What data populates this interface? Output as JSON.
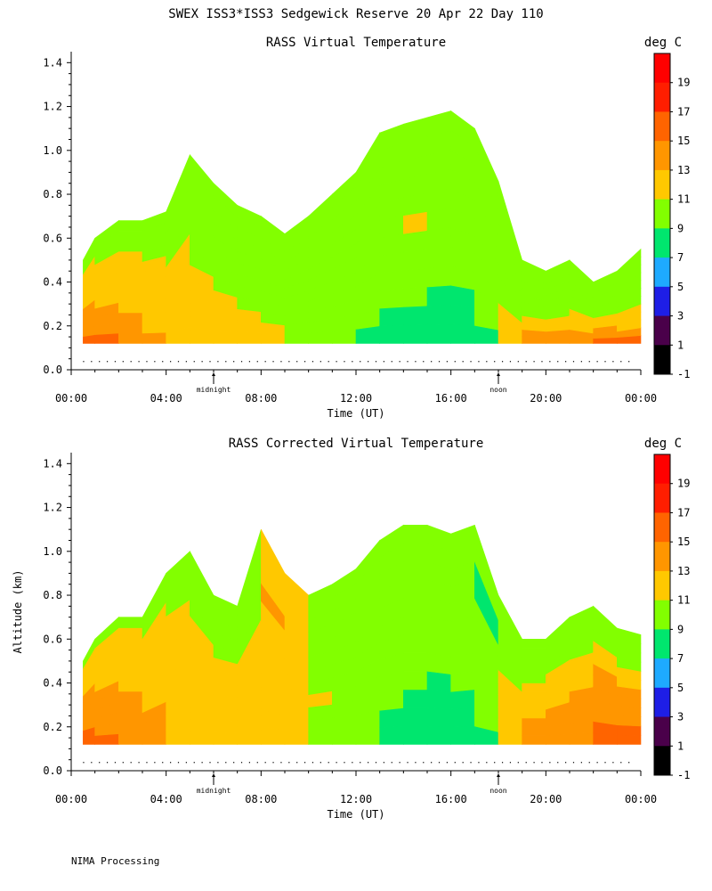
{
  "chart_data": {
    "type": "heatmap",
    "title": "SWEX ISS3*ISS3 Sedgewick Reserve  20 Apr 22 Day 110",
    "footer": "NIMA Processing",
    "xlabel": "Time (UT)",
    "ylabel": "Altitude (km)",
    "x_range_hours": [
      0,
      24
    ],
    "y_range_km": [
      0.0,
      1.45
    ],
    "x_ticks": [
      "00:00",
      "04:00",
      "08:00",
      "12:00",
      "16:00",
      "20:00",
      "00:00"
    ],
    "x_tick_hours": [
      0,
      4,
      8,
      12,
      16,
      20,
      24
    ],
    "y_ticks": [
      "0.0",
      "0.2",
      "0.4",
      "0.6",
      "0.8",
      "1.0",
      "1.2",
      "1.4"
    ],
    "y_tick_values": [
      0.0,
      0.2,
      0.4,
      0.6,
      0.8,
      1.0,
      1.2,
      1.4
    ],
    "markers": [
      {
        "label": "midnight",
        "hour": 6.0
      },
      {
        "label": "noon",
        "hour": 18.0
      }
    ],
    "colorbar": {
      "unit": "deg C",
      "levels": [
        -1,
        1,
        3,
        5,
        7,
        9,
        11,
        13,
        15,
        17,
        19
      ],
      "labels": [
        "19",
        "17",
        "15",
        "13",
        "11",
        "9",
        "7",
        "5",
        "3",
        "1",
        "-1"
      ],
      "colors": [
        "#000000",
        "#4a004a",
        "#1e1ee6",
        "#1eaaff",
        "#00e66e",
        "#82ff00",
        "#ffc800",
        "#ff9600",
        "#ff6400",
        "#ff1e00",
        "#ff0000"
      ]
    },
    "panels": [
      {
        "title": "RASS Virtual Temperature",
        "show_ylabel": false,
        "time_hours": [
          0.5,
          1,
          2,
          3,
          4,
          5,
          6,
          7,
          8,
          9,
          10,
          11,
          12,
          13,
          14,
          15,
          16,
          17,
          18,
          19,
          20,
          21,
          22,
          23,
          24
        ],
        "top_km": [
          0.5,
          0.6,
          0.68,
          0.68,
          0.72,
          0.98,
          0.85,
          0.75,
          0.7,
          0.62,
          0.7,
          0.8,
          0.9,
          1.08,
          1.12,
          1.15,
          1.18,
          1.1,
          0.86,
          0.5,
          0.45,
          0.5,
          0.4,
          0.45,
          0.55
        ],
        "bands_deg_c": [
          [
            15,
            15,
            14,
            13,
            12,
            12,
            11,
            11,
            11,
            10,
            10,
            9,
            8,
            8,
            8,
            7,
            7,
            8,
            12,
            13,
            14,
            14,
            15,
            15,
            15
          ],
          [
            14,
            14,
            13,
            12,
            12,
            12,
            11,
            11,
            11,
            10,
            10,
            9,
            9,
            8,
            8,
            8,
            7,
            9,
            12,
            13,
            13,
            13,
            14,
            14,
            13
          ],
          [
            14,
            13,
            13,
            12,
            12,
            11,
            12,
            11,
            10,
            10,
            10,
            9,
            9,
            9,
            9,
            8,
            8,
            9,
            11,
            12,
            12,
            12,
            13,
            12,
            12
          ],
          [
            13,
            13,
            12,
            12,
            12,
            11,
            11,
            10,
            10,
            9,
            9,
            9,
            9,
            9,
            9,
            9,
            9,
            9,
            10,
            11,
            11,
            11,
            12,
            11,
            11
          ],
          [
            13,
            12,
            12,
            11,
            11,
            11,
            10,
            10,
            10,
            9,
            9,
            9,
            9,
            9,
            10,
            9,
            9,
            9,
            10,
            10,
            10,
            11,
            11,
            11,
            11
          ],
          [
            12,
            12,
            11,
            11,
            11,
            10,
            10,
            10,
            9,
            9,
            9,
            9,
            9,
            10,
            10,
            9,
            9,
            9,
            10,
            10,
            10,
            10,
            10,
            10,
            10
          ],
          [
            12,
            11,
            11,
            11,
            11,
            10,
            9,
            9,
            9,
            9,
            9,
            9,
            9,
            9,
            11,
            9,
            9,
            9,
            9,
            10,
            10,
            10,
            10,
            10,
            10
          ],
          [
            11,
            11,
            11,
            11,
            10,
            10,
            9,
            9,
            9,
            9,
            9,
            9,
            9,
            9,
            9,
            9,
            9,
            9,
            9,
            9,
            9,
            9,
            9,
            9,
            9
          ],
          [
            11,
            11,
            11,
            10,
            10,
            9,
            9,
            9,
            9,
            9,
            9,
            9,
            9,
            9,
            9,
            9,
            9,
            9,
            9,
            9,
            9,
            9,
            9,
            9,
            9
          ],
          [
            11,
            10,
            10,
            10,
            10,
            9,
            9,
            9,
            9,
            9,
            9,
            9,
            9,
            9,
            9,
            9,
            9,
            9,
            9,
            9,
            9,
            9,
            9,
            9,
            9
          ],
          [
            10,
            10,
            10,
            10,
            10,
            9,
            9,
            9,
            9,
            9,
            9,
            9,
            9,
            9,
            9,
            9,
            9,
            9,
            9,
            9,
            9,
            9,
            9,
            9,
            9
          ],
          [
            10,
            10,
            10,
            10,
            10,
            9,
            9,
            9,
            9,
            9,
            9,
            9,
            9,
            9,
            9,
            9,
            9,
            9,
            9,
            9,
            9,
            9,
            9,
            9,
            9
          ]
        ]
      },
      {
        "title": "RASS Corrected Virtual Temperature",
        "show_ylabel": true,
        "time_hours": [
          0.5,
          1,
          2,
          3,
          4,
          5,
          6,
          7,
          8,
          9,
          10,
          11,
          12,
          13,
          14,
          15,
          16,
          17,
          18,
          19,
          20,
          21,
          22,
          23,
          24
        ],
        "top_km": [
          0.5,
          0.6,
          0.7,
          0.7,
          0.9,
          1.0,
          0.8,
          0.75,
          1.1,
          0.9,
          0.8,
          0.85,
          0.92,
          1.05,
          1.12,
          1.12,
          1.08,
          1.12,
          0.8,
          0.6,
          0.6,
          0.7,
          0.75,
          0.65,
          0.62
        ],
        "bands_deg_c": [
          [
            15,
            15,
            14,
            13,
            12,
            12,
            11,
            11,
            11,
            11,
            10,
            9,
            9,
            8,
            7,
            7,
            8,
            8,
            12,
            13,
            14,
            14,
            15,
            15,
            15
          ],
          [
            15,
            14,
            13,
            13,
            12,
            12,
            11,
            11,
            11,
            11,
            10,
            10,
            9,
            8,
            8,
            7,
            8,
            9,
            12,
            13,
            14,
            14,
            15,
            15,
            14
          ],
          [
            14,
            14,
            13,
            13,
            12,
            12,
            12,
            11,
            11,
            11,
            10,
            10,
            9,
            9,
            8,
            8,
            8,
            9,
            12,
            13,
            13,
            13,
            14,
            14,
            13
          ],
          [
            14,
            13,
            13,
            12,
            12,
            12,
            11,
            11,
            11,
            11,
            11,
            10,
            9,
            9,
            9,
            8,
            9,
            9,
            11,
            12,
            13,
            13,
            14,
            14,
            13
          ],
          [
            14,
            13,
            13,
            12,
            12,
            11,
            11,
            11,
            11,
            11,
            10,
            10,
            9,
            9,
            9,
            9,
            9,
            9,
            11,
            12,
            12,
            13,
            14,
            13,
            12
          ],
          [
            13,
            13,
            12,
            12,
            12,
            11,
            11,
            11,
            11,
            11,
            10,
            9,
            9,
            9,
            9,
            9,
            9,
            9,
            11,
            12,
            12,
            12,
            13,
            13,
            12
          ],
          [
            13,
            12,
            12,
            12,
            11,
            11,
            11,
            11,
            12,
            11,
            10,
            9,
            9,
            9,
            9,
            9,
            9,
            9,
            10,
            11,
            11,
            12,
            13,
            12,
            11
          ],
          [
            12,
            12,
            12,
            11,
            11,
            11,
            10,
            10,
            12,
            12,
            10,
            9,
            9,
            9,
            9,
            9,
            9,
            9,
            10,
            10,
            11,
            11,
            12,
            11,
            11
          ],
          [
            12,
            12,
            11,
            11,
            11,
            10,
            10,
            10,
            13,
            12,
            10,
            9,
            9,
            10,
            10,
            9,
            9,
            8,
            9,
            10,
            10,
            10,
            11,
            10,
            10
          ],
          [
            11,
            11,
            11,
            11,
            10,
            10,
            9,
            9,
            12,
            12,
            10,
            9,
            9,
            10,
            10,
            9,
            9,
            8,
            9,
            9,
            10,
            10,
            10,
            10,
            10
          ],
          [
            11,
            11,
            11,
            10,
            10,
            9,
            9,
            9,
            12,
            11,
            9,
            9,
            9,
            9,
            9,
            9,
            9,
            9,
            9,
            9,
            9,
            9,
            9,
            9,
            9
          ],
          [
            10,
            10,
            10,
            10,
            10,
            9,
            9,
            9,
            11,
            11,
            9,
            9,
            9,
            9,
            9,
            9,
            9,
            9,
            9,
            9,
            9,
            9,
            9,
            9,
            9
          ]
        ]
      }
    ]
  }
}
